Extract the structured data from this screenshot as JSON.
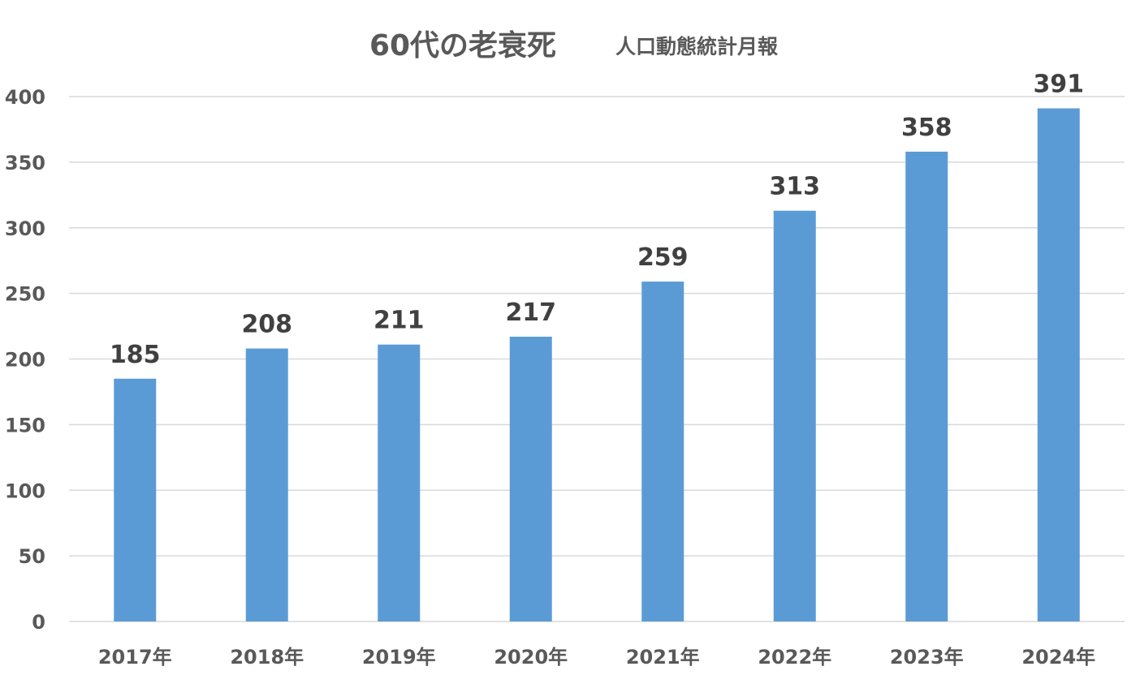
{
  "chart_data": {
    "type": "bar",
    "title": "60代の老衰死",
    "subtitle": "人口動態統計月報",
    "categories": [
      "2017年",
      "2018年",
      "2019年",
      "2020年",
      "2021年",
      "2022年",
      "2023年",
      "2024年"
    ],
    "values": [
      185,
      208,
      211,
      217,
      259,
      313,
      358,
      391
    ],
    "xlabel": "",
    "ylabel": "",
    "ylim": [
      0,
      400
    ],
    "yticks": [
      0,
      50,
      100,
      150,
      200,
      250,
      300,
      350,
      400
    ],
    "grid": true,
    "legend": "none",
    "bar_color": "#5b9bd5"
  }
}
